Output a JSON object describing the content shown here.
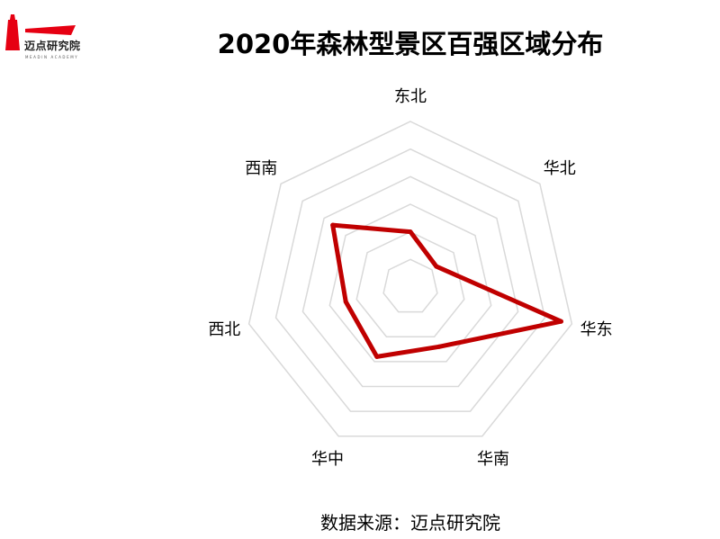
{
  "logo": {
    "text": "迈点研究院",
    "subtext": "MEADIN ACADEMY",
    "color": "#e60012"
  },
  "source": "数据来源：迈点研究院",
  "chart_data": {
    "type": "radar",
    "title": "2020年森林型景区百强区域分布",
    "categories": [
      "东北",
      "华北",
      "华东",
      "华南",
      "华中",
      "西北",
      "西南"
    ],
    "values": [
      10,
      6,
      28,
      12,
      14,
      12,
      18
    ],
    "rlim": [
      0,
      30
    ],
    "ring_step": 5,
    "grid": true,
    "series_color": "#c00000",
    "grid_color": "#d9d9d9"
  }
}
